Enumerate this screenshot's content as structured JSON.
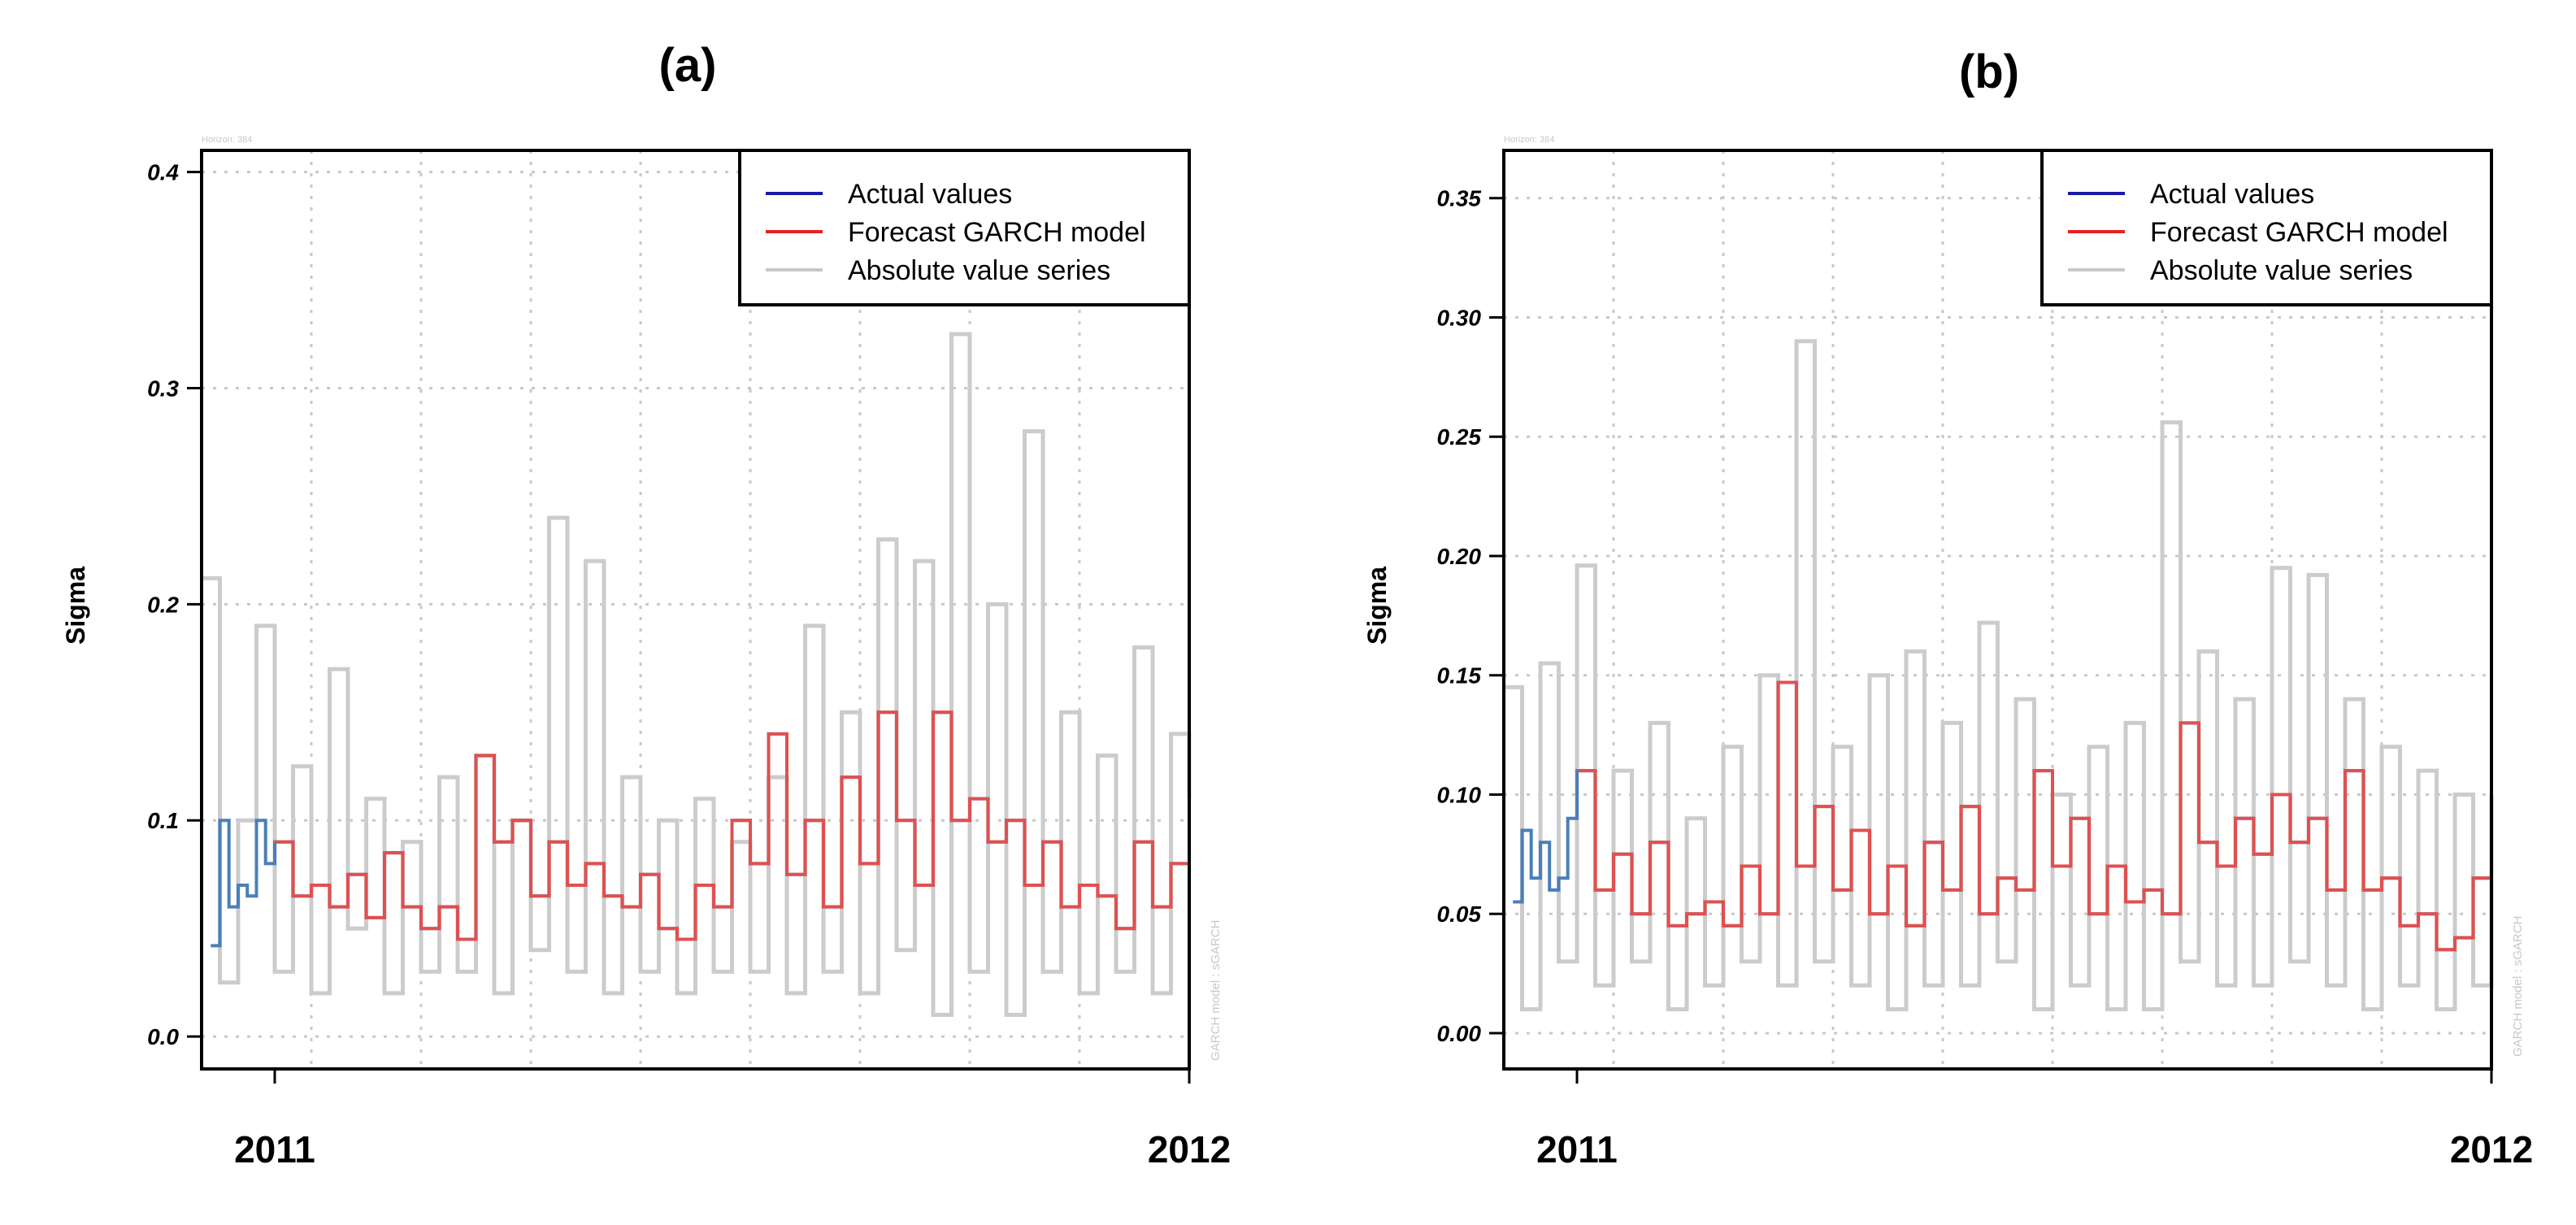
{
  "chart_data": [
    {
      "type": "line",
      "title": "(a)",
      "ylabel": "Sigma",
      "xlabel": "",
      "horizon_label": "Horizon: 384",
      "side_label": "GARCH model : sGARCH",
      "xlim": [
        2010.92,
        2012.0
      ],
      "ylim": [
        -0.015,
        0.41
      ],
      "yticks": [
        0.0,
        0.1,
        0.2,
        0.3,
        0.4
      ],
      "ytick_labels": [
        "0.0",
        "0.1",
        "0.2",
        "0.3",
        "0.4"
      ],
      "xticks": [
        2011,
        2012
      ],
      "xtick_labels": [
        "2011",
        "2012"
      ],
      "grid": true,
      "legend_position": "top-right",
      "legend": [
        {
          "label": "Actual values",
          "color": "#1a1aa8"
        },
        {
          "label": "Forecast GARCH model",
          "color": "#e82020"
        },
        {
          "label": "Absolute value series",
          "color": "#c8c8c8"
        }
      ],
      "series": [
        {
          "name": "Absolute value series",
          "color": "#cccccc",
          "x": [
            2010.92,
            2010.94,
            2010.96,
            2010.98,
            2011.0,
            2011.02,
            2011.04,
            2011.06,
            2011.08,
            2011.1,
            2011.12,
            2011.14,
            2011.16,
            2011.18,
            2011.2,
            2011.22,
            2011.24,
            2011.26,
            2011.28,
            2011.3,
            2011.32,
            2011.34,
            2011.36,
            2011.38,
            2011.4,
            2011.42,
            2011.44,
            2011.46,
            2011.48,
            2011.5,
            2011.52,
            2011.54,
            2011.56,
            2011.58,
            2011.6,
            2011.62,
            2011.64,
            2011.66,
            2011.68,
            2011.7,
            2011.72,
            2011.74,
            2011.76,
            2011.78,
            2011.8,
            2011.82,
            2011.84,
            2011.86,
            2011.88,
            2011.9,
            2011.92,
            2011.94,
            2011.96,
            2011.98,
            2012.0
          ],
          "values": [
            0.212,
            0.025,
            0.1,
            0.19,
            0.03,
            0.125,
            0.02,
            0.17,
            0.05,
            0.11,
            0.02,
            0.09,
            0.03,
            0.12,
            0.03,
            0.13,
            0.02,
            0.1,
            0.04,
            0.24,
            0.03,
            0.22,
            0.02,
            0.12,
            0.03,
            0.1,
            0.02,
            0.11,
            0.03,
            0.09,
            0.03,
            0.12,
            0.02,
            0.19,
            0.03,
            0.15,
            0.02,
            0.23,
            0.04,
            0.22,
            0.01,
            0.325,
            0.03,
            0.2,
            0.01,
            0.28,
            0.03,
            0.15,
            0.02,
            0.13,
            0.03,
            0.18,
            0.02,
            0.14,
            0.11
          ]
        },
        {
          "name": "Actual values",
          "color": "#4a7fb8",
          "x": [
            2010.93,
            2010.94,
            2010.95,
            2010.96,
            2010.97,
            2010.98,
            2010.99,
            2011.0,
            2011.02,
            2011.04,
            2011.06,
            2011.08,
            2011.1,
            2011.12,
            2011.14,
            2011.16,
            2011.18,
            2011.2,
            2011.22,
            2011.24,
            2011.26,
            2011.28,
            2011.3,
            2011.32,
            2011.34,
            2011.36,
            2011.38,
            2011.4,
            2011.42,
            2011.44,
            2011.46,
            2011.48,
            2011.5,
            2011.52,
            2011.54,
            2011.56,
            2011.58,
            2011.6,
            2011.62,
            2011.64,
            2011.66,
            2011.68,
            2011.7,
            2011.72,
            2011.74,
            2011.76,
            2011.78,
            2011.8,
            2011.82,
            2011.84,
            2011.86,
            2011.88,
            2011.9,
            2011.92,
            2011.94,
            2011.96,
            2011.98,
            2012.0
          ],
          "values": [
            0.042,
            0.1,
            0.06,
            0.07,
            0.065,
            0.1,
            0.08,
            0.09,
            0.065,
            0.07,
            0.06,
            0.075,
            0.055,
            0.085,
            0.06,
            0.05,
            0.06,
            0.045,
            0.13,
            0.09,
            0.1,
            0.065,
            0.09,
            0.07,
            0.08,
            0.065,
            0.06,
            0.075,
            0.05,
            0.045,
            0.07,
            0.06,
            0.1,
            0.08,
            0.14,
            0.075,
            0.1,
            0.06,
            0.12,
            0.08,
            0.15,
            0.1,
            0.07,
            0.15,
            0.1,
            0.11,
            0.09,
            0.1,
            0.07,
            0.09,
            0.06,
            0.07,
            0.065,
            0.05,
            0.09,
            0.06,
            0.08,
            0.07
          ]
        },
        {
          "name": "Forecast GARCH model",
          "color": "#e05050",
          "x": [
            2011.0,
            2011.02,
            2011.04,
            2011.06,
            2011.08,
            2011.1,
            2011.12,
            2011.14,
            2011.16,
            2011.18,
            2011.2,
            2011.22,
            2011.24,
            2011.26,
            2011.28,
            2011.3,
            2011.32,
            2011.34,
            2011.36,
            2011.38,
            2011.4,
            2011.42,
            2011.44,
            2011.46,
            2011.48,
            2011.5,
            2011.52,
            2011.54,
            2011.56,
            2011.58,
            2011.6,
            2011.62,
            2011.64,
            2011.66,
            2011.68,
            2011.7,
            2011.72,
            2011.74,
            2011.76,
            2011.78,
            2011.8,
            2011.82,
            2011.84,
            2011.86,
            2011.88,
            2011.9,
            2011.92,
            2011.94,
            2011.96,
            2011.98,
            2012.0
          ],
          "values": [
            0.09,
            0.065,
            0.07,
            0.06,
            0.075,
            0.055,
            0.085,
            0.06,
            0.05,
            0.06,
            0.045,
            0.13,
            0.09,
            0.1,
            0.065,
            0.09,
            0.07,
            0.08,
            0.065,
            0.06,
            0.075,
            0.05,
            0.045,
            0.07,
            0.06,
            0.1,
            0.08,
            0.14,
            0.075,
            0.1,
            0.06,
            0.12,
            0.08,
            0.15,
            0.1,
            0.07,
            0.15,
            0.1,
            0.11,
            0.09,
            0.1,
            0.07,
            0.09,
            0.06,
            0.07,
            0.065,
            0.05,
            0.09,
            0.06,
            0.08,
            0.07
          ]
        }
      ]
    },
    {
      "type": "line",
      "title": "(b)",
      "ylabel": "Sigma",
      "xlabel": "",
      "horizon_label": "Horizon: 384",
      "side_label": "GARCH model : sGARCH",
      "xlim": [
        2010.92,
        2012.0
      ],
      "ylim": [
        -0.015,
        0.37
      ],
      "yticks": [
        0.0,
        0.05,
        0.1,
        0.15,
        0.2,
        0.25,
        0.3,
        0.35
      ],
      "ytick_labels": [
        "0.00",
        "0.05",
        "0.10",
        "0.15",
        "0.20",
        "0.25",
        "0.30",
        "0.35"
      ],
      "xticks": [
        2011,
        2012
      ],
      "xtick_labels": [
        "2011",
        "2012"
      ],
      "grid": true,
      "legend_position": "top-right",
      "legend": [
        {
          "label": "Actual values",
          "color": "#1a1aa8"
        },
        {
          "label": "Forecast GARCH model",
          "color": "#e82020"
        },
        {
          "label": "Absolute value series",
          "color": "#c8c8c8"
        }
      ],
      "series": [
        {
          "name": "Absolute value series",
          "color": "#cccccc",
          "x": [
            2010.92,
            2010.94,
            2010.96,
            2010.98,
            2011.0,
            2011.02,
            2011.04,
            2011.06,
            2011.08,
            2011.1,
            2011.12,
            2011.14,
            2011.16,
            2011.18,
            2011.2,
            2011.22,
            2011.24,
            2011.26,
            2011.28,
            2011.3,
            2011.32,
            2011.34,
            2011.36,
            2011.38,
            2011.4,
            2011.42,
            2011.44,
            2011.46,
            2011.48,
            2011.5,
            2011.52,
            2011.54,
            2011.56,
            2011.58,
            2011.6,
            2011.62,
            2011.64,
            2011.66,
            2011.68,
            2011.7,
            2011.72,
            2011.74,
            2011.76,
            2011.78,
            2011.8,
            2011.82,
            2011.84,
            2011.86,
            2011.88,
            2011.9,
            2011.92,
            2011.94,
            2011.96,
            2011.98,
            2012.0
          ],
          "values": [
            0.145,
            0.01,
            0.155,
            0.03,
            0.196,
            0.02,
            0.11,
            0.03,
            0.13,
            0.01,
            0.09,
            0.02,
            0.12,
            0.03,
            0.15,
            0.02,
            0.29,
            0.03,
            0.12,
            0.02,
            0.15,
            0.01,
            0.16,
            0.02,
            0.13,
            0.02,
            0.172,
            0.03,
            0.14,
            0.01,
            0.1,
            0.02,
            0.12,
            0.01,
            0.13,
            0.01,
            0.256,
            0.03,
            0.16,
            0.02,
            0.14,
            0.02,
            0.195,
            0.03,
            0.192,
            0.02,
            0.14,
            0.01,
            0.12,
            0.02,
            0.11,
            0.01,
            0.1,
            0.02,
            0.1
          ]
        },
        {
          "name": "Actual values",
          "color": "#4a7fb8",
          "x": [
            2010.93,
            2010.94,
            2010.95,
            2010.96,
            2010.97,
            2010.98,
            2010.99,
            2011.0,
            2011.02,
            2011.04,
            2011.06,
            2011.08,
            2011.1,
            2011.12,
            2011.14,
            2011.16,
            2011.18,
            2011.2,
            2011.22,
            2011.24,
            2011.26,
            2011.28,
            2011.3,
            2011.32,
            2011.34,
            2011.36,
            2011.38,
            2011.4,
            2011.42,
            2011.44,
            2011.46,
            2011.48,
            2011.5,
            2011.52,
            2011.54,
            2011.56,
            2011.58,
            2011.6,
            2011.62,
            2011.64,
            2011.66,
            2011.68,
            2011.7,
            2011.72,
            2011.74,
            2011.76,
            2011.78,
            2011.8,
            2011.82,
            2011.84,
            2011.86,
            2011.88,
            2011.9,
            2011.92,
            2011.94,
            2011.96,
            2011.98,
            2012.0
          ],
          "values": [
            0.055,
            0.085,
            0.065,
            0.08,
            0.06,
            0.065,
            0.09,
            0.11,
            0.06,
            0.075,
            0.05,
            0.08,
            0.045,
            0.05,
            0.055,
            0.045,
            0.07,
            0.05,
            0.147,
            0.07,
            0.095,
            0.06,
            0.085,
            0.05,
            0.07,
            0.045,
            0.08,
            0.06,
            0.095,
            0.05,
            0.065,
            0.06,
            0.11,
            0.07,
            0.09,
            0.05,
            0.07,
            0.055,
            0.06,
            0.05,
            0.13,
            0.08,
            0.07,
            0.09,
            0.075,
            0.1,
            0.08,
            0.09,
            0.06,
            0.11,
            0.06,
            0.065,
            0.045,
            0.05,
            0.035,
            0.04,
            0.065,
            0.06
          ]
        },
        {
          "name": "Forecast GARCH model",
          "color": "#e05050",
          "x": [
            2011.0,
            2011.02,
            2011.04,
            2011.06,
            2011.08,
            2011.1,
            2011.12,
            2011.14,
            2011.16,
            2011.18,
            2011.2,
            2011.22,
            2011.24,
            2011.26,
            2011.28,
            2011.3,
            2011.32,
            2011.34,
            2011.36,
            2011.38,
            2011.4,
            2011.42,
            2011.44,
            2011.46,
            2011.48,
            2011.5,
            2011.52,
            2011.54,
            2011.56,
            2011.58,
            2011.6,
            2011.62,
            2011.64,
            2011.66,
            2011.68,
            2011.7,
            2011.72,
            2011.74,
            2011.76,
            2011.78,
            2011.8,
            2011.82,
            2011.84,
            2011.86,
            2011.88,
            2011.9,
            2011.92,
            2011.94,
            2011.96,
            2011.98,
            2012.0
          ],
          "values": [
            0.11,
            0.06,
            0.075,
            0.05,
            0.08,
            0.045,
            0.05,
            0.055,
            0.045,
            0.07,
            0.05,
            0.147,
            0.07,
            0.095,
            0.06,
            0.085,
            0.05,
            0.07,
            0.045,
            0.08,
            0.06,
            0.095,
            0.05,
            0.065,
            0.06,
            0.11,
            0.07,
            0.09,
            0.05,
            0.07,
            0.055,
            0.06,
            0.05,
            0.13,
            0.08,
            0.07,
            0.09,
            0.075,
            0.1,
            0.08,
            0.09,
            0.06,
            0.11,
            0.06,
            0.065,
            0.045,
            0.05,
            0.035,
            0.04,
            0.065,
            0.06
          ]
        }
      ]
    }
  ]
}
